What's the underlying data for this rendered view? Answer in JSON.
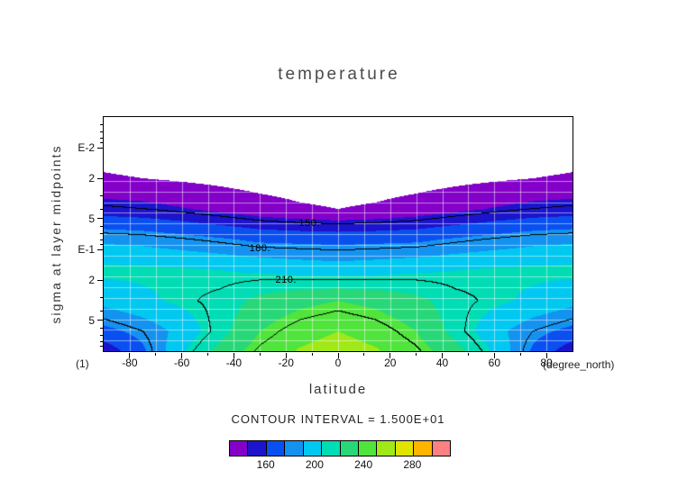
{
  "title": "temperature",
  "contour_note": "CONTOUR INTERVAL = 1.500E+01",
  "axes": {
    "x": {
      "label": "latitude",
      "unit_note": "(degree_north)",
      "corner_note": "(1)",
      "min": -90,
      "max": 90,
      "minor_tick_step": 10,
      "ticks": [
        {
          "value": -80,
          "label": "-80"
        },
        {
          "value": -60,
          "label": "-60"
        },
        {
          "value": -40,
          "label": "-40"
        },
        {
          "value": -20,
          "label": "-20"
        },
        {
          "value": 0,
          "label": "0"
        },
        {
          "value": 20,
          "label": "20"
        },
        {
          "value": 40,
          "label": "40"
        },
        {
          "value": 60,
          "label": "60"
        },
        {
          "value": 80,
          "label": "80"
        }
      ]
    },
    "y": {
      "label": "sigma at layer midpoints",
      "scale": "log",
      "min": 0.005,
      "max": 1.0,
      "ticks": [
        {
          "value": 0.01,
          "label": "E-2"
        },
        {
          "value": 0.02,
          "label": "2"
        },
        {
          "value": 0.05,
          "label": "5"
        },
        {
          "value": 0.1,
          "label": "E-1"
        },
        {
          "value": 0.2,
          "label": "2"
        },
        {
          "value": 0.5,
          "label": "5"
        }
      ]
    }
  },
  "chart_data": {
    "type": "heatmap",
    "style": "filled-contour",
    "title": "temperature",
    "xlabel": "latitude",
    "ylabel": "sigma at layer midpoints",
    "x_unit": "degree_north",
    "contour_interval": 15,
    "x_lat": [
      -90,
      -75,
      -60,
      -45,
      -30,
      -15,
      0,
      15,
      30,
      45,
      60,
      75,
      90
    ],
    "y_sigma": [
      0.005,
      0.01,
      0.02,
      0.04,
      0.08,
      0.16,
      0.32,
      0.64,
      1.0
    ],
    "values": [
      [
        122,
        120,
        118,
        116,
        114,
        112,
        110,
        112,
        114,
        116,
        118,
        120,
        122
      ],
      [
        126,
        125,
        123,
        120,
        118,
        117,
        116,
        117,
        118,
        120,
        123,
        125,
        126
      ],
      [
        131,
        130,
        128,
        126,
        124,
        123,
        122,
        123,
        124,
        126,
        128,
        130,
        131
      ],
      [
        152,
        150,
        146,
        141,
        136,
        132,
        130,
        132,
        136,
        141,
        146,
        150,
        152
      ],
      [
        187,
        185,
        181,
        177,
        172,
        171,
        170,
        171,
        172,
        177,
        181,
        185,
        187
      ],
      [
        209,
        208,
        207,
        205,
        203,
        200,
        198,
        200,
        203,
        205,
        207,
        208,
        209
      ],
      [
        195,
        202,
        208,
        213,
        224,
        231,
        235,
        231,
        224,
        213,
        208,
        202,
        195
      ],
      [
        170,
        180,
        195,
        215,
        235,
        245,
        250,
        245,
        235,
        215,
        195,
        180,
        170
      ],
      [
        150,
        172,
        203,
        226,
        242,
        251,
        256,
        251,
        242,
        226,
        203,
        172,
        150
      ]
    ],
    "fill_levels": [
      130,
      145,
      160,
      175,
      190,
      205,
      220,
      235,
      250,
      265,
      280,
      295,
      310
    ],
    "fill_colors": [
      "#8400c8",
      "#1c14cc",
      "#0a50f0",
      "#1492f0",
      "#00c8f0",
      "#00dcb4",
      "#28d878",
      "#50e43c",
      "#a0e818",
      "#e0e400",
      "#ffb400",
      "#ff8080"
    ],
    "below_min_color": "#ffffff",
    "line_levels": [
      150,
      180,
      210,
      240
    ],
    "contour_labels": [
      {
        "text": "150.",
        "lat": -11,
        "sigma": 0.055
      },
      {
        "text": "180.",
        "lat": -30,
        "sigma": 0.098
      },
      {
        "text": "210.",
        "lat": -20,
        "sigma": 0.2
      }
    ],
    "colorbar": {
      "min": 130,
      "max": 310,
      "ticks": [
        {
          "value": 160,
          "label": "160"
        },
        {
          "value": 200,
          "label": "200"
        },
        {
          "value": 240,
          "label": "240"
        },
        {
          "value": 280,
          "label": "280"
        }
      ]
    },
    "grid": {
      "lat_step": 10,
      "n_sigma_lines": 22,
      "color": "#ffffff"
    }
  }
}
